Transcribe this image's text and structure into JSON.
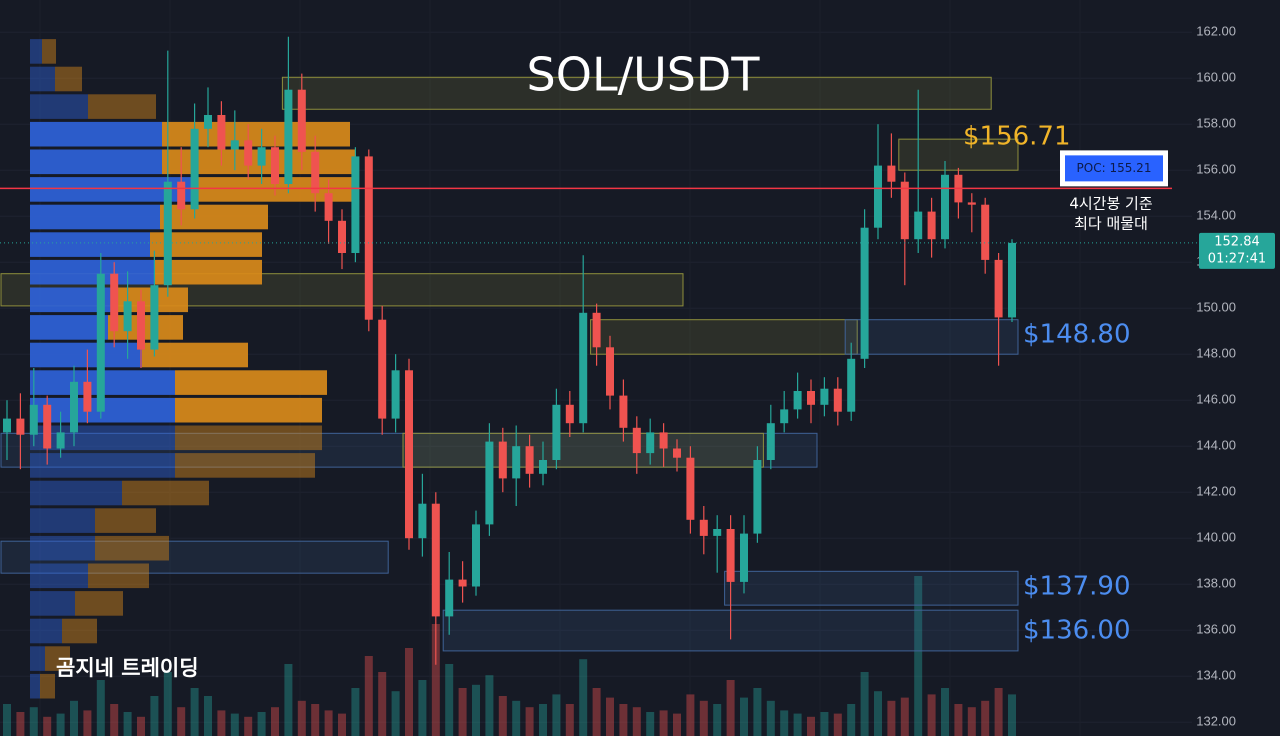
{
  "chart_data": {
    "type": "candlestick",
    "title": "SOL/USDT",
    "watermark": "곰지네 트레이딩",
    "ylim": [
      131.4,
      163.4
    ],
    "yticks": [
      {
        "value": 132,
        "label": "132.00"
      },
      {
        "value": 134,
        "label": "134.00"
      },
      {
        "value": 136,
        "label": "136.00"
      },
      {
        "value": 138,
        "label": "138.00"
      },
      {
        "value": 140,
        "label": "140.00"
      },
      {
        "value": 142,
        "label": "142.00"
      },
      {
        "value": 144,
        "label": "144.00"
      },
      {
        "value": 146,
        "label": "146.00"
      },
      {
        "value": 148,
        "label": "148.00"
      },
      {
        "value": 150,
        "label": "150.00"
      },
      {
        "value": 152,
        "label": "152.00"
      },
      {
        "value": 154,
        "label": "154.00"
      },
      {
        "value": 156,
        "label": "156.00"
      },
      {
        "value": 158,
        "label": "158.00"
      },
      {
        "value": 160,
        "label": "160.00"
      },
      {
        "value": 162,
        "label": "162.00"
      }
    ],
    "grid": true,
    "up_color": "#26a69a",
    "down_color": "#ef5350",
    "open": [
      144.6,
      145.2,
      144.5,
      145.8,
      143.9,
      144.6,
      146.8,
      145.5,
      151.5,
      149.0,
      150.3,
      148.2,
      151.0,
      155.5,
      154.3,
      157.8,
      158.4,
      156.9,
      157.3,
      156.2,
      157.0,
      155.4,
      159.5,
      156.8,
      155.0,
      153.8,
      152.4,
      156.6,
      149.5,
      145.2,
      147.3,
      140.0,
      141.5,
      136.6,
      138.2,
      137.9,
      140.6,
      144.2,
      142.6,
      144.0,
      142.8,
      143.4,
      145.8,
      145.0,
      149.8,
      148.3,
      146.2,
      144.8,
      143.7,
      144.6,
      143.9,
      143.5,
      140.8,
      140.1,
      140.4,
      138.1,
      140.2,
      143.4,
      145.0,
      145.6,
      146.4,
      145.8,
      146.5,
      145.5,
      147.8,
      153.5,
      156.2,
      155.5,
      153.0,
      154.2,
      153.0,
      155.8,
      154.6,
      154.5,
      152.1,
      149.6
    ],
    "high": [
      146.0,
      146.3,
      147.4,
      146.2,
      145.5,
      147.5,
      148.2,
      152.4,
      152.0,
      151.6,
      150.8,
      152.5,
      161.2,
      157.0,
      158.9,
      159.6,
      159.0,
      158.6,
      158.0,
      157.8,
      157.5,
      161.8,
      160.2,
      157.5,
      155.6,
      154.3,
      157.0,
      156.9,
      150.1,
      148.0,
      147.8,
      142.8,
      142.0,
      139.4,
      139.0,
      141.2,
      145.0,
      144.8,
      144.9,
      144.5,
      144.2,
      146.5,
      146.4,
      152.3,
      150.2,
      148.8,
      146.9,
      145.3,
      145.2,
      145.0,
      144.3,
      144.0,
      141.4,
      141.0,
      141.0,
      141.0,
      144.0,
      145.8,
      146.4,
      147.2,
      146.9,
      147.0,
      147.0,
      148.5,
      154.3,
      158.0,
      157.6,
      155.9,
      159.5,
      154.8,
      156.4,
      156.1,
      155.0,
      154.8,
      152.4,
      153.0
    ],
    "low": [
      143.4,
      143.0,
      144.0,
      143.2,
      143.5,
      144.0,
      145.0,
      145.2,
      148.3,
      147.8,
      147.4,
      147.9,
      150.5,
      153.6,
      153.9,
      157.0,
      156.2,
      156.0,
      155.6,
      155.4,
      154.9,
      155.0,
      156.0,
      154.2,
      152.8,
      151.7,
      152.0,
      149.0,
      144.5,
      144.6,
      139.5,
      139.2,
      134.5,
      135.8,
      137.2,
      137.5,
      140.1,
      142.0,
      141.4,
      142.2,
      142.3,
      143.0,
      144.4,
      144.6,
      147.5,
      145.6,
      144.2,
      142.8,
      143.2,
      143.1,
      142.9,
      140.2,
      139.3,
      138.5,
      135.6,
      137.6,
      139.8,
      143.0,
      144.6,
      145.2,
      145.0,
      145.3,
      144.9,
      145.1,
      147.4,
      153.0,
      154.8,
      151.0,
      152.4,
      152.2,
      152.6,
      153.9,
      153.3,
      151.5,
      147.5,
      149.4
    ],
    "close": [
      145.2,
      144.5,
      145.8,
      143.9,
      144.6,
      146.8,
      145.5,
      151.5,
      149.0,
      150.3,
      148.2,
      151.0,
      155.5,
      154.3,
      157.8,
      158.4,
      156.9,
      157.3,
      156.2,
      157.0,
      155.4,
      159.5,
      156.8,
      155.0,
      153.8,
      152.4,
      156.6,
      149.5,
      145.2,
      147.3,
      140.0,
      141.5,
      136.6,
      138.2,
      137.9,
      140.6,
      144.2,
      142.6,
      144.0,
      142.8,
      143.4,
      145.8,
      145.0,
      149.8,
      148.3,
      146.2,
      144.8,
      143.7,
      144.6,
      143.9,
      143.5,
      140.8,
      140.1,
      140.4,
      138.1,
      140.2,
      143.4,
      145.0,
      145.6,
      146.4,
      145.8,
      146.5,
      145.5,
      147.8,
      153.5,
      156.2,
      155.5,
      153.0,
      154.2,
      153.0,
      155.8,
      154.6,
      154.5,
      152.1,
      149.6,
      152.84
    ],
    "volume": [
      20,
      15,
      18,
      12,
      14,
      22,
      16,
      35,
      20,
      15,
      12,
      25,
      40,
      18,
      30,
      25,
      16,
      14,
      12,
      15,
      18,
      45,
      22,
      20,
      16,
      14,
      30,
      50,
      40,
      28,
      55,
      35,
      70,
      45,
      30,
      32,
      38,
      25,
      22,
      18,
      20,
      26,
      20,
      48,
      30,
      24,
      20,
      18,
      15,
      16,
      14,
      26,
      22,
      20,
      35,
      24,
      30,
      22,
      16,
      14,
      12,
      15,
      14,
      20,
      40,
      28,
      22,
      24,
      100,
      26,
      30,
      20,
      18,
      22,
      30,
      26
    ],
    "zones": [
      {
        "low": 158.65,
        "high": 160.04,
        "from": 21,
        "to": 73,
        "color": "#8f8f3c"
      },
      {
        "low": 156.0,
        "high": 157.35,
        "from": 67,
        "to": 75,
        "color": "#8f8f3c"
      },
      {
        "low": 150.1,
        "high": 151.5,
        "from": 0,
        "to": 50,
        "color": "#8f8f3c"
      },
      {
        "low": 148.0,
        "high": 149.5,
        "from": 44,
        "to": 63,
        "color": "#8f8f3c"
      },
      {
        "low": 148.0,
        "high": 149.5,
        "from": 63,
        "to": 75,
        "color": "#3f6296"
      },
      {
        "low": 143.09,
        "high": 144.56,
        "from": 0,
        "to": 60,
        "color": "#3f6296"
      },
      {
        "low": 143.09,
        "high": 144.56,
        "from": 30,
        "to": 56,
        "color": "#8f8f3c"
      },
      {
        "low": 138.48,
        "high": 139.87,
        "from": 0,
        "to": 28,
        "color": "#3f6296"
      },
      {
        "low": 137.09,
        "high": 138.56,
        "from": 54,
        "to": 75,
        "color": "#3f6296"
      },
      {
        "low": 135.1,
        "high": 136.87,
        "from": 33,
        "to": 75,
        "color": "#3f6296"
      }
    ],
    "zone_labels": [
      {
        "text": "$156.71",
        "color": "#f0b429"
      },
      {
        "text": "$148.80",
        "color": "#4c8df0"
      },
      {
        "text": "$137.90",
        "color": "#4c8df0"
      },
      {
        "text": "$136.00",
        "color": "#4c8df0"
      }
    ],
    "volume_profile": {
      "bins": [
        161.7,
        160.5,
        159.3,
        158.1,
        156.9,
        155.7,
        154.5,
        153.3,
        152.1,
        150.9,
        149.7,
        148.5,
        147.3,
        146.1,
        144.9,
        143.7,
        142.5,
        141.3,
        140.1,
        138.9,
        137.7,
        136.5,
        135.3,
        134.1,
        132.9
      ],
      "buy": [
        12,
        25,
        58,
        132,
        132,
        165,
        130,
        120,
        125,
        88,
        78,
        112,
        145,
        145,
        145,
        145,
        92,
        65,
        65,
        58,
        45,
        32,
        15,
        10
      ],
      "sell": [
        14,
        27,
        68,
        188,
        193,
        162,
        108,
        112,
        107,
        70,
        75,
        106,
        152,
        147,
        147,
        140,
        87,
        61,
        74,
        61,
        48,
        35,
        25,
        15
      ],
      "buy_color": "#2f62d8",
      "sell_color": "#d98a1a",
      "value_area": [
        144.9,
        158.1
      ]
    },
    "poc": {
      "value": 155.21,
      "label": "POC: 155.21",
      "color": "#f23645"
    },
    "poc_note": [
      "4시간봉 기준",
      "최다 매물대"
    ],
    "last_price": {
      "value": 152.84,
      "label": "152.84"
    },
    "countdown": "01:27:41"
  }
}
